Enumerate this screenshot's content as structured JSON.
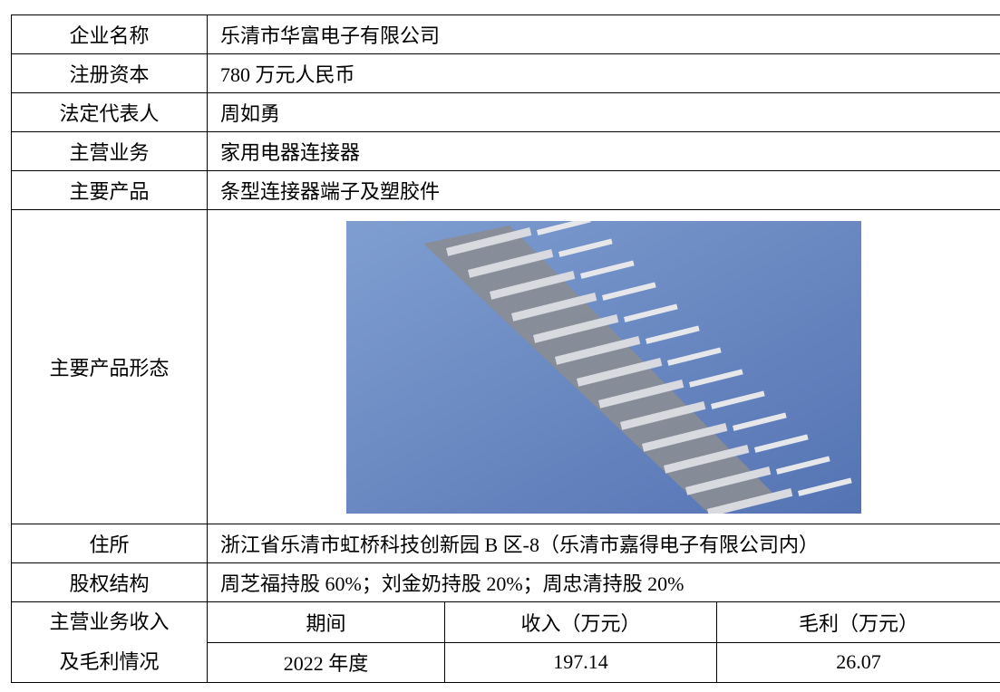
{
  "table": {
    "rows": [
      {
        "label": "企业名称",
        "value": "乐清市华富电子有限公司"
      },
      {
        "label": "注册资本",
        "value": "780 万元人民币"
      },
      {
        "label": "法定代表人",
        "value": "周如勇"
      },
      {
        "label": "主营业务",
        "value": "家用电器连接器"
      },
      {
        "label": "主要产品",
        "value": "条型连接器端子及塑胶件"
      },
      {
        "label": "主要产品形态"
      },
      {
        "label": "住所",
        "value": "浙江省乐清市虹桥科技创新园 B 区-8（乐清市嘉得电子有限公司内）"
      },
      {
        "label": "股权结构",
        "value": "周芝福持股 60%；刘金奶持股 20%；周忠清持股 20%"
      }
    ],
    "finance": {
      "label": [
        "主营业务收入",
        "及毛利情况"
      ],
      "headers": [
        "期间",
        "收入（万元）",
        "毛利（万元）"
      ],
      "rows": [
        [
          "2022 年度",
          "197.14",
          "26.07"
        ]
      ]
    }
  }
}
